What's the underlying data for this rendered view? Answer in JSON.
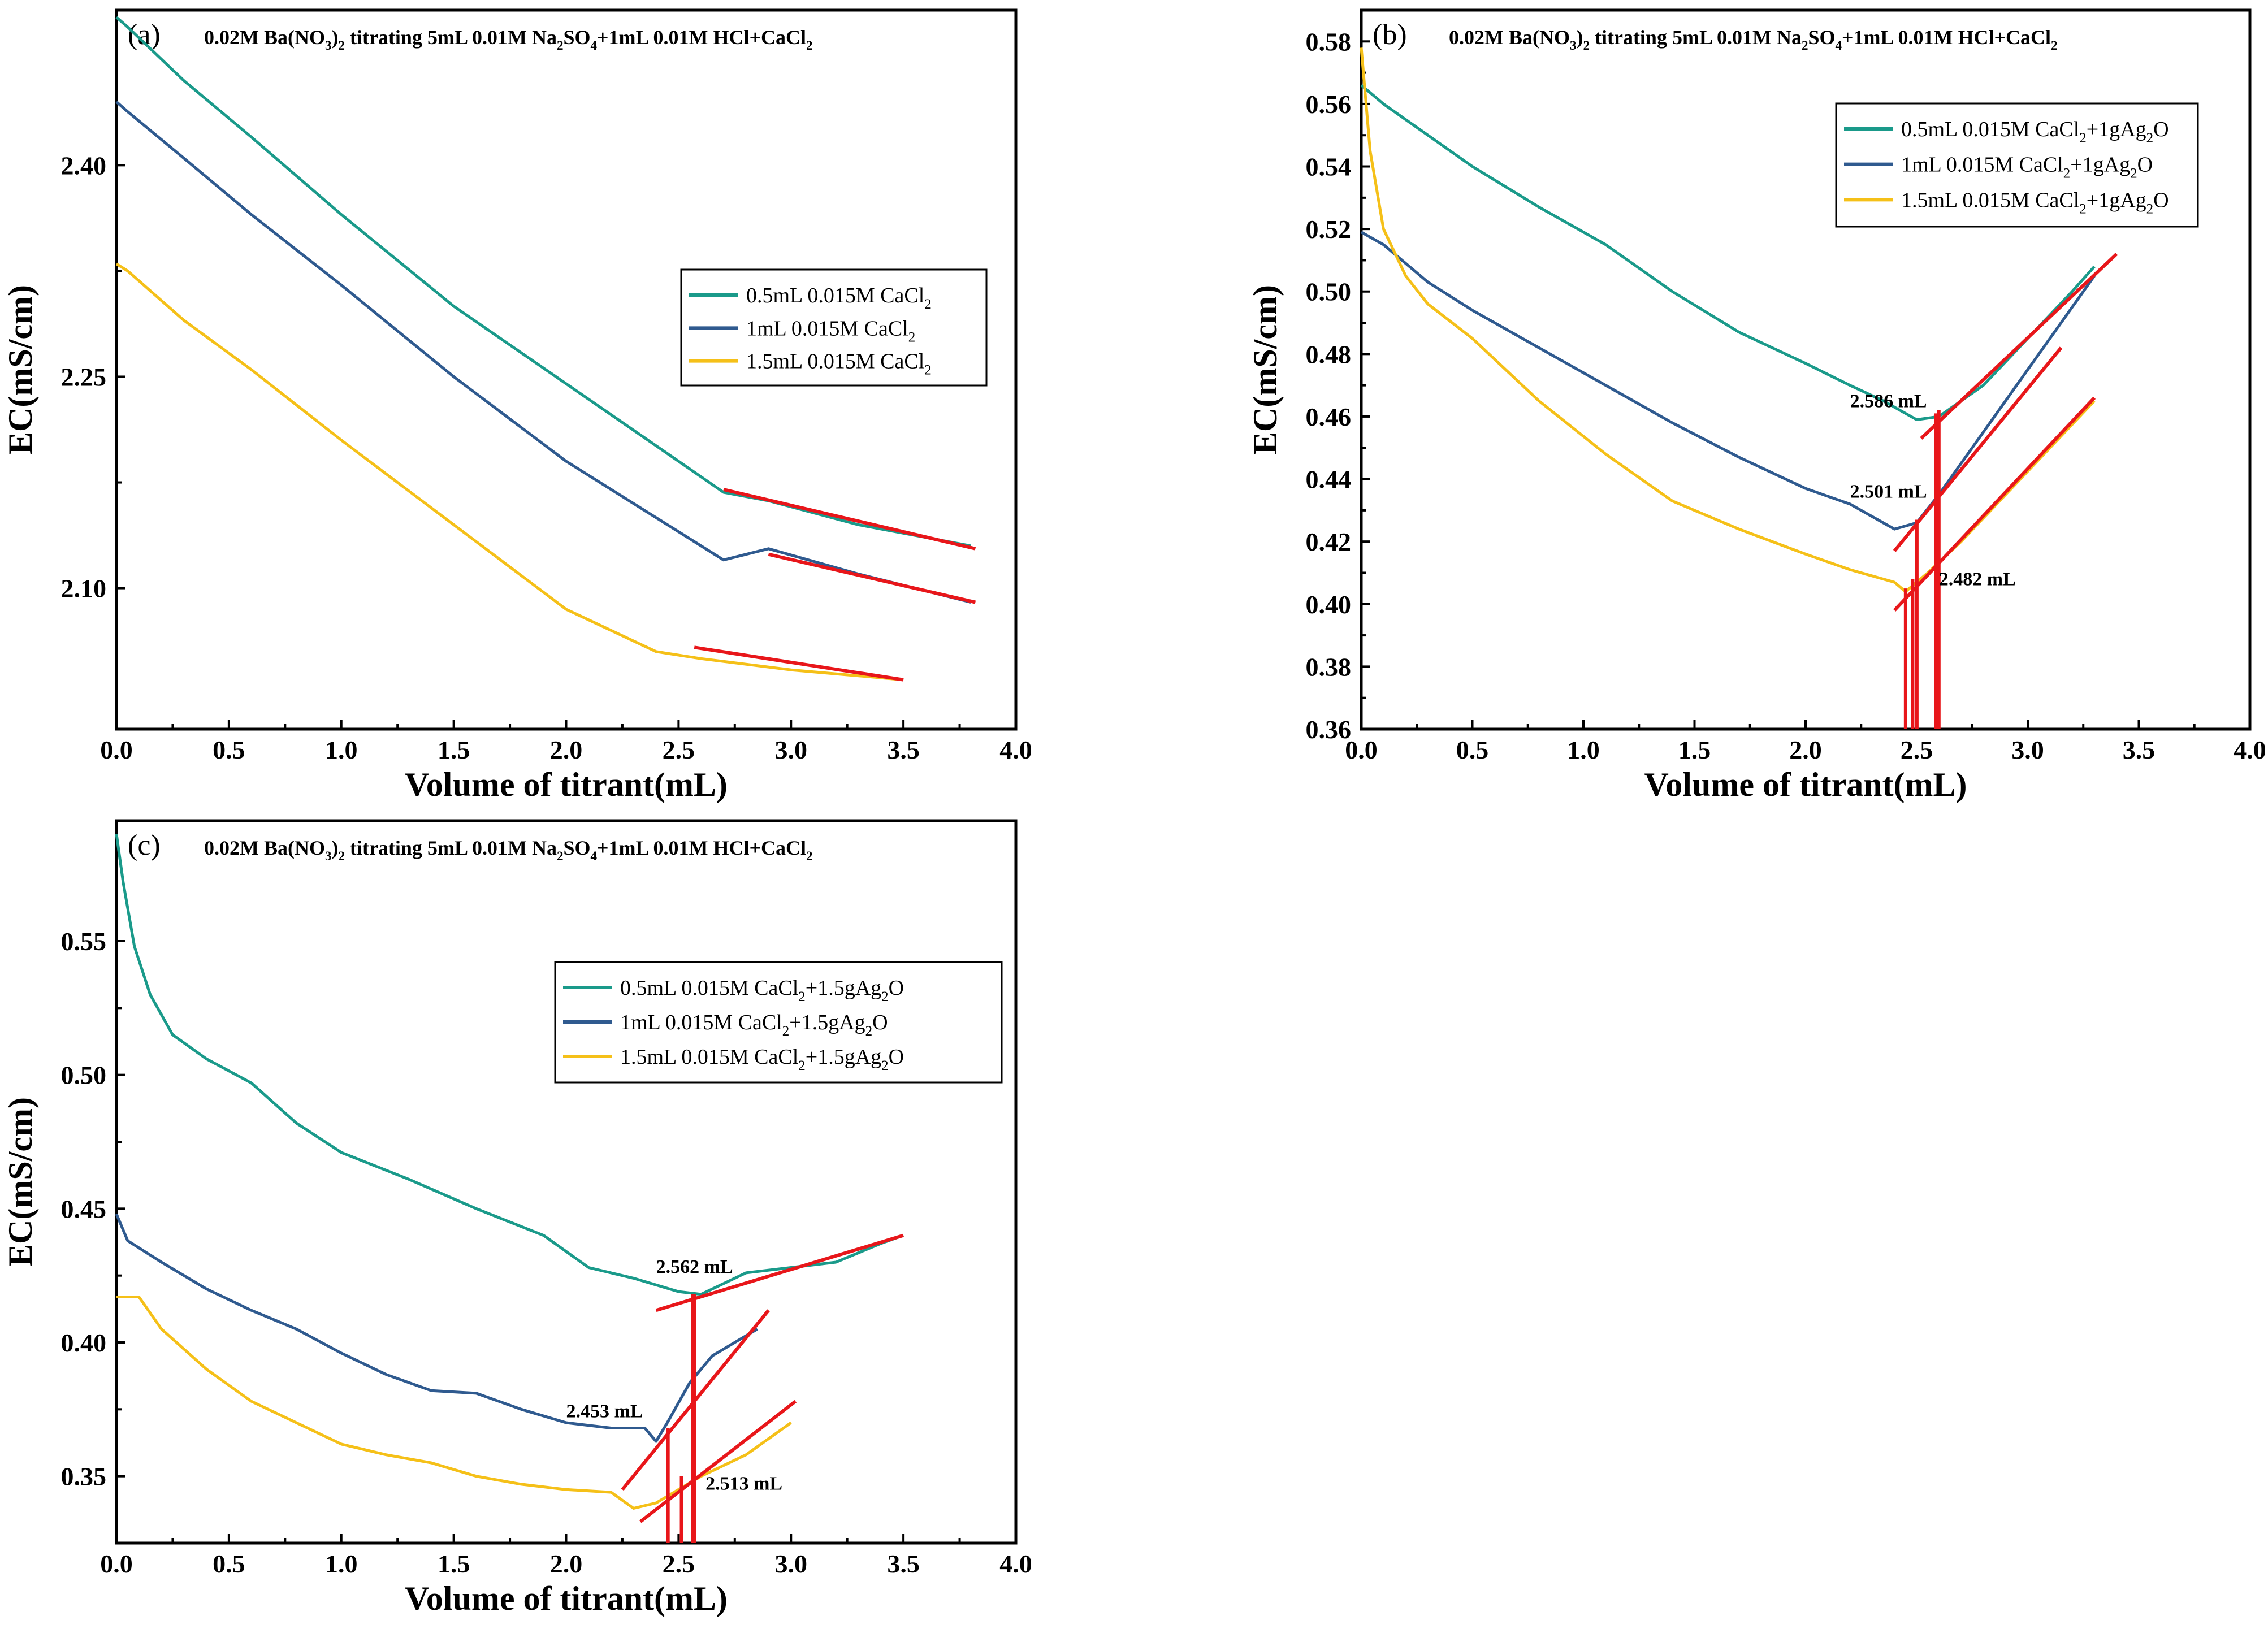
{
  "chart_data": [
    {
      "type": "line",
      "panel": "(a)",
      "title": "0.02M Ba(NO3)2 titrating 5mL 0.01M Na2SO4+1mL 0.01M HCl+CaCl2",
      "title_parts": [
        [
          "0.02M Ba(NO",
          ""
        ],
        [
          "3",
          ""
        ],
        [
          ")",
          ""
        ],
        [
          "2",
          ""
        ],
        [
          " titrating 5mL 0.01M Na",
          ""
        ],
        [
          "2",
          ""
        ],
        [
          "SO",
          ""
        ],
        [
          "4",
          ""
        ],
        [
          "+1mL 0.01M HCl+CaCl",
          ""
        ],
        [
          "2",
          ""
        ]
      ],
      "xlabel": "Volume of titrant(mL)",
      "ylabel": "EC(mS/cm)",
      "xlim": [
        0,
        4
      ],
      "ylim": [
        2.0,
        2.51
      ],
      "xticks": [
        "0.0",
        "0.5",
        "1.0",
        "1.5",
        "2.0",
        "2.5",
        "3.0",
        "3.5",
        "4.0"
      ],
      "xtick_values": [
        0,
        0.5,
        1,
        1.5,
        2,
        2.5,
        3,
        3.5,
        4
      ],
      "yticks": [
        "2.10",
        "2.25",
        "2.40"
      ],
      "ytick_values": [
        2.1,
        2.25,
        2.4
      ],
      "legend": [
        "0.5mL 0.015M CaCl2",
        "1mL 0.015M CaCl2",
        "1.5mL 0.015M CaCl2"
      ],
      "series": [
        {
          "name": "0.5mL 0.015M CaCl2",
          "color": "#1a9a8a",
          "x": [
            0,
            0.05,
            0.3,
            0.6,
            1.0,
            1.5,
            2.0,
            2.5,
            2.7,
            2.9,
            3.3,
            3.8
          ],
          "y": [
            2.505,
            2.498,
            2.46,
            2.42,
            2.365,
            2.3,
            2.245,
            2.19,
            2.168,
            2.162,
            2.145,
            2.13
          ]
        },
        {
          "name": "1mL 0.015M CaCl2",
          "color": "#2f5a8f",
          "x": [
            0,
            0.05,
            0.3,
            0.6,
            1.0,
            1.5,
            2.0,
            2.5,
            2.7,
            2.9,
            3.3,
            3.8
          ],
          "y": [
            2.445,
            2.438,
            2.405,
            2.365,
            2.315,
            2.25,
            2.19,
            2.14,
            2.12,
            2.128,
            2.11,
            2.09
          ]
        },
        {
          "name": "1.5mL 0.015M CaCl2",
          "color": "#f5c018",
          "x": [
            0,
            0.05,
            0.3,
            0.6,
            1.0,
            1.5,
            2.0,
            2.4,
            2.6,
            3.0,
            3.5
          ],
          "y": [
            2.33,
            2.325,
            2.29,
            2.255,
            2.205,
            2.145,
            2.085,
            2.055,
            2.05,
            2.042,
            2.035
          ]
        }
      ],
      "fit_lines": [
        {
          "x": [
            2.7,
            3.82
          ],
          "y": [
            2.17,
            2.128
          ]
        },
        {
          "x": [
            2.9,
            3.82
          ],
          "y": [
            2.124,
            2.09
          ]
        },
        {
          "x": [
            2.57,
            3.5
          ],
          "y": [
            2.058,
            2.035
          ]
        }
      ],
      "legend_values": [
        0.5,
        1,
        1.5
      ]
    },
    {
      "type": "line",
      "panel": "(b)",
      "title": "0.02M Ba(NO3)2 titrating 5mL 0.01M Na2SO4+1mL 0.01M HCl+CaCl2",
      "xlabel": "Volume of titrant(mL)",
      "ylabel": "EC(mS/cm)",
      "xlim": [
        0,
        4
      ],
      "ylim": [
        0.36,
        0.59
      ],
      "xticks": [
        "0.0",
        "0.5",
        "1.0",
        "1.5",
        "2.0",
        "2.5",
        "3.0",
        "3.5",
        "4.0"
      ],
      "xtick_values": [
        0,
        0.5,
        1,
        1.5,
        2,
        2.5,
        3,
        3.5,
        4
      ],
      "yticks": [
        "0.36",
        "0.38",
        "0.40",
        "0.42",
        "0.44",
        "0.46",
        "0.48",
        "0.50",
        "0.52",
        "0.54",
        "0.56",
        "0.58"
      ],
      "ytick_values": [
        0.36,
        0.38,
        0.4,
        0.42,
        0.44,
        0.46,
        0.48,
        0.5,
        0.52,
        0.54,
        0.56,
        0.58
      ],
      "legend": [
        "0.5mL 0.015M CaCl2+1gAg2O",
        "1mL 0.015M CaCl2+1gAg2O",
        "1.5mL 0.015M CaCl2+1gAg2O"
      ],
      "series": [
        {
          "name": "0.5mL 0.015M CaCl2+1gAg2O",
          "color": "#1a9a8a",
          "x": [
            0,
            0.1,
            0.3,
            0.5,
            0.8,
            1.1,
            1.4,
            1.7,
            2.0,
            2.2,
            2.35,
            2.5,
            2.6,
            2.8,
            3.0,
            3.2,
            3.3
          ],
          "y": [
            0.566,
            0.56,
            0.55,
            0.54,
            0.527,
            0.515,
            0.5,
            0.487,
            0.477,
            0.47,
            0.465,
            0.459,
            0.46,
            0.47,
            0.485,
            0.5,
            0.508
          ]
        },
        {
          "name": "1mL 0.015M CaCl2+1gAg2O",
          "color": "#2f5a8f",
          "x": [
            0,
            0.1,
            0.3,
            0.5,
            0.8,
            1.1,
            1.4,
            1.7,
            2.0,
            2.2,
            2.4,
            2.5,
            2.6,
            2.8,
            3.0,
            3.2,
            3.3
          ],
          "y": [
            0.519,
            0.515,
            0.503,
            0.494,
            0.482,
            0.47,
            0.458,
            0.447,
            0.437,
            0.432,
            0.424,
            0.426,
            0.435,
            0.455,
            0.475,
            0.495,
            0.505
          ]
        },
        {
          "name": "1.5mL 0.015M CaCl2+1gAg2O",
          "color": "#f5c018",
          "x": [
            0,
            0.04,
            0.1,
            0.2,
            0.3,
            0.5,
            0.8,
            1.1,
            1.4,
            1.7,
            2.0,
            2.2,
            2.4,
            2.45,
            2.55,
            2.7,
            2.9,
            3.1,
            3.3
          ],
          "y": [
            0.578,
            0.545,
            0.52,
            0.505,
            0.496,
            0.485,
            0.465,
            0.448,
            0.433,
            0.424,
            0.416,
            0.411,
            0.407,
            0.404,
            0.41,
            0.42,
            0.435,
            0.45,
            0.465
          ]
        }
      ],
      "fit_lines": [
        {
          "x": [
            2.52,
            3.4
          ],
          "y": [
            0.453,
            0.512
          ]
        },
        {
          "x": [
            2.4,
            3.15
          ],
          "y": [
            0.417,
            0.482
          ]
        },
        {
          "x": [
            2.4,
            3.3
          ],
          "y": [
            0.398,
            0.466
          ]
        }
      ],
      "markers": [
        {
          "x": 2.586,
          "y_top": 0.461
        },
        {
          "x": 2.501,
          "y_top": 0.427
        },
        {
          "x": 2.482,
          "y_top": 0.408
        },
        {
          "x": 2.45,
          "y_top": 0.405
        },
        {
          "x": 2.6,
          "y_top": 0.462
        }
      ],
      "annotations": [
        {
          "text": "2.586 mL",
          "x": 2.2,
          "y": 0.463
        },
        {
          "text": "2.501 mL",
          "x": 2.2,
          "y": 0.434
        },
        {
          "text": "2.482 mL",
          "x": 2.6,
          "y": 0.406
        }
      ]
    },
    {
      "type": "line",
      "panel": "(c)",
      "title": "0.02M Ba(NO3)2 titrating 5mL 0.01M Na2SO4+1mL 0.01M HCl+CaCl2",
      "xlabel": "Volume of titrant(mL)",
      "ylabel": "EC(mS/cm)",
      "xlim": [
        0,
        4
      ],
      "ylim": [
        0.325,
        0.595
      ],
      "xticks": [
        "0.0",
        "0.5",
        "1.0",
        "1.5",
        "2.0",
        "2.5",
        "3.0",
        "3.5",
        "4.0"
      ],
      "xtick_values": [
        0,
        0.5,
        1,
        1.5,
        2,
        2.5,
        3,
        3.5,
        4
      ],
      "yticks": [
        "0.35",
        "0.40",
        "0.45",
        "0.50",
        "0.55"
      ],
      "ytick_values": [
        0.35,
        0.4,
        0.45,
        0.5,
        0.55
      ],
      "legend": [
        "0.5mL 0.015M CaCl2+1.5gAg2O",
        "1mL 0.015M CaCl2+1.5gAg2O",
        "1.5mL 0.015M CaCl2+1.5gAg2O"
      ],
      "series": [
        {
          "name": "0.5mL 0.015M CaCl2+1.5gAg2O",
          "color": "#1a9a8a",
          "x": [
            0,
            0.03,
            0.08,
            0.15,
            0.25,
            0.4,
            0.6,
            0.8,
            1.0,
            1.3,
            1.6,
            1.9,
            2.1,
            2.3,
            2.5,
            2.6,
            2.8,
            3.0,
            3.2,
            3.4,
            3.5
          ],
          "y": [
            0.59,
            0.572,
            0.548,
            0.53,
            0.515,
            0.506,
            0.497,
            0.482,
            0.471,
            0.461,
            0.45,
            0.44,
            0.428,
            0.424,
            0.419,
            0.418,
            0.426,
            0.428,
            0.43,
            0.437,
            0.44
          ]
        },
        {
          "name": "1mL 0.015M CaCl2+1.5gAg2O",
          "color": "#2f5a8f",
          "x": [
            0,
            0.05,
            0.2,
            0.4,
            0.6,
            0.8,
            1.0,
            1.2,
            1.4,
            1.6,
            1.8,
            2.0,
            2.2,
            2.35,
            2.4,
            2.45,
            2.55,
            2.65,
            2.75,
            2.85
          ],
          "y": [
            0.448,
            0.438,
            0.43,
            0.42,
            0.412,
            0.405,
            0.396,
            0.388,
            0.382,
            0.381,
            0.375,
            0.37,
            0.368,
            0.368,
            0.363,
            0.37,
            0.385,
            0.395,
            0.4,
            0.405
          ]
        },
        {
          "name": "1.5mL 0.015M CaCl2+1.5gAg2O",
          "color": "#f5c018",
          "x": [
            0,
            0.1,
            0.2,
            0.4,
            0.6,
            0.8,
            1.0,
            1.2,
            1.4,
            1.6,
            1.8,
            2.0,
            2.2,
            2.3,
            2.4,
            2.5,
            2.6,
            2.8,
            3.0
          ],
          "y": [
            0.417,
            0.417,
            0.405,
            0.39,
            0.378,
            0.37,
            0.362,
            0.358,
            0.355,
            0.35,
            0.347,
            0.345,
            0.344,
            0.338,
            0.34,
            0.345,
            0.35,
            0.358,
            0.37
          ]
        }
      ],
      "fit_lines": [
        {
          "x": [
            2.4,
            3.5
          ],
          "y": [
            0.412,
            0.44
          ]
        },
        {
          "x": [
            2.25,
            2.9
          ],
          "y": [
            0.345,
            0.412
          ]
        },
        {
          "x": [
            2.33,
            3.02
          ],
          "y": [
            0.333,
            0.378
          ]
        }
      ],
      "markers": [
        {
          "x": 2.562,
          "y_top": 0.418
        },
        {
          "x": 2.453,
          "y_top": 0.368
        },
        {
          "x": 2.513,
          "y_top": 0.35
        },
        {
          "x": 2.57,
          "y_top": 0.418
        }
      ],
      "annotations": [
        {
          "text": "2.562 mL",
          "x": 2.4,
          "y": 0.426
        },
        {
          "text": "2.453 mL",
          "x": 2.0,
          "y": 0.372
        },
        {
          "text": "2.513 mL",
          "x": 2.62,
          "y": 0.345
        }
      ]
    }
  ]
}
